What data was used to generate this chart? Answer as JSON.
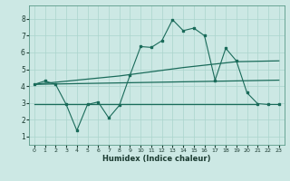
{
  "xlabel": "Humidex (Indice chaleur)",
  "background_color": "#cce8e4",
  "grid_color": "#aad4cc",
  "line_color": "#1a6b5a",
  "xlim": [
    -0.5,
    23.5
  ],
  "ylim": [
    0.5,
    8.8
  ],
  "yticks": [
    1,
    2,
    3,
    4,
    5,
    6,
    7,
    8
  ],
  "xticks": [
    0,
    1,
    2,
    3,
    4,
    5,
    6,
    7,
    8,
    9,
    10,
    11,
    12,
    13,
    14,
    15,
    16,
    17,
    18,
    19,
    20,
    21,
    22,
    23
  ],
  "series1_x": [
    0,
    1,
    2,
    3,
    4,
    5,
    6,
    7,
    8,
    9,
    10,
    11,
    12,
    13,
    14,
    15,
    16,
    17,
    18,
    19,
    20,
    21,
    22,
    23
  ],
  "series1_y": [
    4.1,
    4.3,
    4.1,
    2.9,
    1.35,
    2.9,
    3.05,
    2.1,
    2.85,
    4.65,
    6.35,
    6.3,
    6.7,
    7.95,
    7.3,
    7.45,
    7.0,
    4.35,
    6.25,
    5.5,
    3.6,
    2.95,
    2.9,
    2.9
  ],
  "series2_x": [
    0,
    23
  ],
  "series2_y": [
    4.1,
    4.35
  ],
  "series3_x": [
    0,
    8,
    14,
    19,
    23
  ],
  "series3_y": [
    4.1,
    4.6,
    5.1,
    5.45,
    5.5
  ],
  "series4_x": [
    0,
    21
  ],
  "series4_y": [
    2.9,
    2.9
  ]
}
